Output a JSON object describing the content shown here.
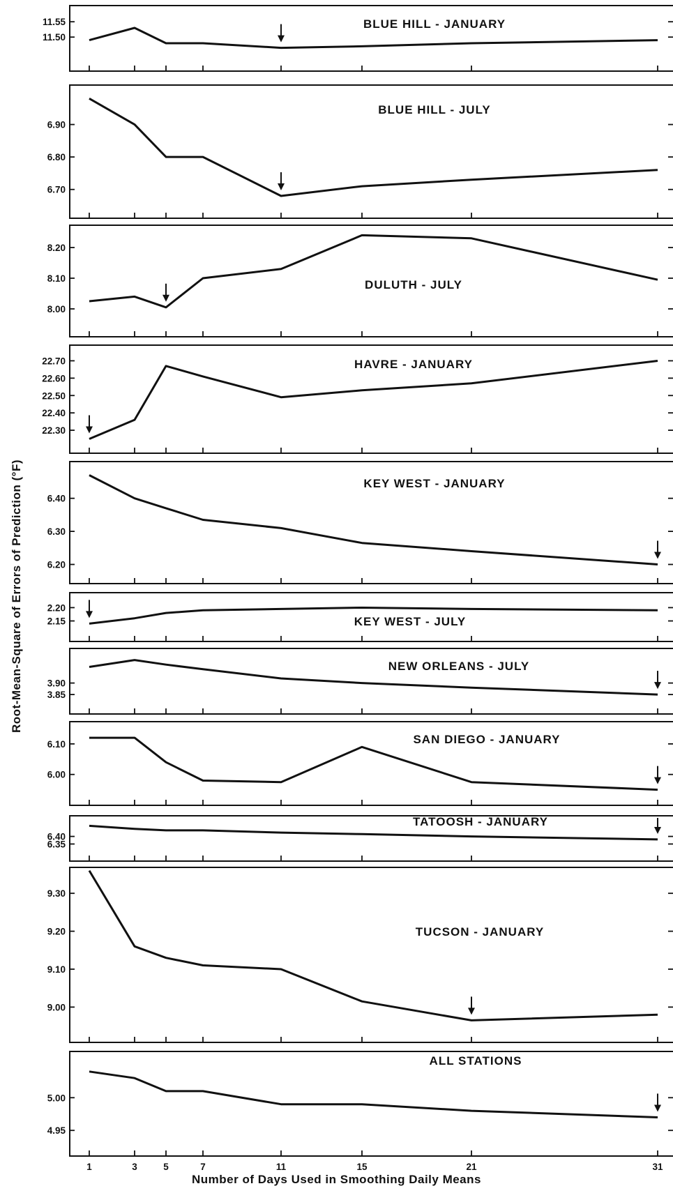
{
  "figure": {
    "ylabel": "Root-Mean-Square of Errors of Prediction (°F)",
    "xlabel": "Number of Days Used in Smoothing Daily Means",
    "x_ticks": [
      1,
      3,
      5,
      7,
      11,
      15,
      21,
      31
    ]
  },
  "chart_data": [
    {
      "type": "line",
      "title": "BLUE HILL - JANUARY",
      "yticks": [
        "11.55",
        "11.50"
      ],
      "ytick_values": [
        11.55,
        11.5
      ],
      "ylim": [
        11.43,
        11.58
      ],
      "x": [
        1,
        3,
        5,
        7,
        11,
        15,
        21,
        31
      ],
      "values": [
        11.49,
        11.53,
        11.48,
        11.48,
        11.465,
        11.47,
        11.48,
        11.49
      ],
      "min_marker_x": 11
    },
    {
      "type": "line",
      "title": "BLUE HILL - JULY",
      "yticks": [
        "6.90",
        "6.80",
        "6.70"
      ],
      "ytick_values": [
        6.9,
        6.8,
        6.7
      ],
      "ylim": [
        6.65,
        7.0
      ],
      "x": [
        1,
        3,
        5,
        7,
        11,
        15,
        21,
        31
      ],
      "values": [
        6.98,
        6.9,
        6.8,
        6.8,
        6.68,
        6.71,
        6.73,
        6.76
      ],
      "min_marker_x": 11
    },
    {
      "type": "line",
      "title": "DULUTH - JULY",
      "yticks": [
        "8.20",
        "8.10",
        "8.00"
      ],
      "ytick_values": [
        8.2,
        8.1,
        8.0
      ],
      "ylim": [
        7.95,
        8.25
      ],
      "x": [
        1,
        3,
        5,
        7,
        11,
        15,
        21,
        31
      ],
      "values": [
        8.025,
        8.04,
        8.005,
        8.1,
        8.13,
        8.24,
        8.23,
        8.095
      ],
      "min_marker_x": 5
    },
    {
      "type": "line",
      "title": "HAVRE - JANUARY",
      "yticks": [
        "22.70",
        "22.60",
        "22.50",
        "22.40",
        "22.30"
      ],
      "ytick_values": [
        22.7,
        22.6,
        22.5,
        22.4,
        22.3
      ],
      "ylim": [
        22.24,
        22.75
      ],
      "x": [
        1,
        3,
        5,
        7,
        11,
        15,
        21,
        31
      ],
      "values": [
        22.25,
        22.36,
        22.67,
        22.61,
        22.49,
        22.53,
        22.57,
        22.7
      ],
      "min_marker_x": 1
    },
    {
      "type": "line",
      "title": "KEY WEST - JANUARY",
      "yticks": [
        "6.40",
        "6.30",
        "6.20"
      ],
      "ytick_values": [
        6.4,
        6.3,
        6.2
      ],
      "ylim": [
        6.18,
        6.49
      ],
      "x": [
        1,
        3,
        5,
        7,
        11,
        15,
        21,
        31
      ],
      "values": [
        6.47,
        6.4,
        6.37,
        6.335,
        6.31,
        6.265,
        6.24,
        6.2
      ],
      "min_marker_x": 31
    },
    {
      "type": "line",
      "title": "KEY WEST - JULY",
      "yticks": [
        "2.20",
        "2.15"
      ],
      "ytick_values": [
        2.2,
        2.15
      ],
      "ylim": [
        2.12,
        2.23
      ],
      "x": [
        1,
        3,
        5,
        7,
        11,
        15,
        21,
        31
      ],
      "values": [
        2.14,
        2.16,
        2.18,
        2.19,
        2.195,
        2.2,
        2.195,
        2.19
      ],
      "min_marker_x": 1
    },
    {
      "type": "line",
      "title": "NEW ORLEANS - JULY",
      "yticks": [
        "3.90",
        "3.85"
      ],
      "ytick_values": [
        3.9,
        3.85
      ],
      "ylim": [
        3.82,
        4.02
      ],
      "x": [
        1,
        3,
        5,
        7,
        11,
        15,
        21,
        31
      ],
      "values": [
        3.97,
        4.0,
        3.98,
        3.96,
        3.92,
        3.9,
        3.88,
        3.85
      ],
      "min_marker_x": 31
    },
    {
      "type": "line",
      "title": "SAN DIEGO - JANUARY",
      "yticks": [
        "6.10",
        "6.00"
      ],
      "ytick_values": [
        6.1,
        6.0
      ],
      "ylim": [
        5.94,
        6.15
      ],
      "x": [
        1,
        3,
        5,
        7,
        11,
        15,
        21,
        31
      ],
      "values": [
        6.12,
        6.12,
        6.04,
        5.98,
        5.975,
        6.09,
        5.975,
        5.95
      ],
      "min_marker_x": 31
    },
    {
      "type": "line",
      "title": "TATOOSH - JANUARY",
      "yticks": [
        "6.40",
        "6.35"
      ],
      "ytick_values": [
        6.4,
        6.35
      ],
      "ylim": [
        6.32,
        6.49
      ],
      "x": [
        1,
        3,
        5,
        7,
        11,
        15,
        21,
        31
      ],
      "values": [
        6.47,
        6.45,
        6.44,
        6.44,
        6.425,
        6.415,
        6.4,
        6.38
      ],
      "min_marker_x": 31
    },
    {
      "type": "line",
      "title": "TUCSON - JANUARY",
      "yticks": [
        "9.30",
        "9.20",
        "9.10",
        "9.00"
      ],
      "ytick_values": [
        9.3,
        9.2,
        9.1,
        9.0
      ],
      "ylim": [
        8.94,
        9.35
      ],
      "x": [
        1,
        3,
        5,
        7,
        11,
        15,
        21,
        31
      ],
      "values": [
        9.36,
        9.16,
        9.13,
        9.11,
        9.1,
        9.015,
        8.965,
        8.98
      ],
      "min_marker_x": 21
    },
    {
      "type": "line",
      "title": "ALL STATIONS",
      "yticks": [
        "5.00",
        "4.95"
      ],
      "ytick_values": [
        5.0,
        4.95
      ],
      "ylim": [
        4.93,
        5.06
      ],
      "x": [
        1,
        3,
        5,
        7,
        11,
        15,
        21,
        31
      ],
      "values": [
        5.04,
        5.03,
        5.01,
        5.01,
        4.99,
        4.99,
        4.98,
        4.97
      ],
      "min_marker_x": 31
    }
  ]
}
